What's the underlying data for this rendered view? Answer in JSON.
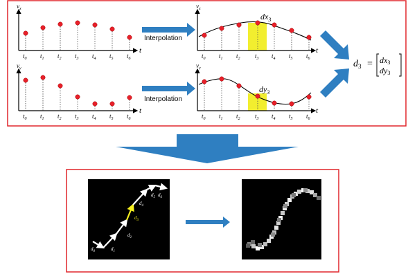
{
  "panel_top": {
    "row1": {
      "y_axis_label": "v",
      "y_axis_sub": "x",
      "x_axis_label": "t",
      "ticks": [
        {
          "base": "t",
          "sub": "0"
        },
        {
          "base": "t",
          "sub": "1"
        },
        {
          "base": "t",
          "sub": "2"
        },
        {
          "base": "t",
          "sub": "3"
        },
        {
          "base": "t",
          "sub": "4"
        },
        {
          "base": "t",
          "sub": "5"
        },
        {
          "base": "t",
          "sub": "6"
        }
      ],
      "arrow_label": "Interpolation",
      "highlight_label": "dx",
      "highlight_sub": "3"
    },
    "row2": {
      "y_axis_label": "v",
      "y_axis_sub": "y",
      "x_axis_label": "t",
      "ticks": [
        {
          "base": "t",
          "sub": "0"
        },
        {
          "base": "t",
          "sub": "1"
        },
        {
          "base": "t",
          "sub": "2"
        },
        {
          "base": "t",
          "sub": "3"
        },
        {
          "base": "t",
          "sub": "4"
        },
        {
          "base": "t",
          "sub": "5"
        },
        {
          "base": "t",
          "sub": "6"
        }
      ],
      "arrow_label": "Interpolation",
      "highlight_label": "dy",
      "highlight_sub": "3"
    },
    "equation": {
      "lhs": "d",
      "lhs_sub": "3",
      "equals": "=",
      "top_entry": "dx",
      "top_sub": "3",
      "bottom_entry": "dy",
      "bottom_sub": "3"
    }
  },
  "panel_bottom": {
    "vector_labels": [
      {
        "base": "d",
        "sub": "0"
      },
      {
        "base": "d",
        "sub": "1"
      },
      {
        "base": "d",
        "sub": "2"
      },
      {
        "base": "d",
        "sub": "3"
      },
      {
        "base": "d",
        "sub": "4"
      },
      {
        "base": "d",
        "sub": "5"
      },
      {
        "base": "d",
        "sub": "6"
      }
    ]
  },
  "colors": {
    "frame_red": "#e0262c",
    "arrow_blue": "#2f7fc1",
    "point_red": "#e8202a",
    "highlight_yellow": "#f2ee2f",
    "highlight_vector": "#f5ef1f"
  },
  "icons": {
    "down_arrow": "big-down-arrow-icon",
    "right_arrow": "right-arrow-icon"
  }
}
